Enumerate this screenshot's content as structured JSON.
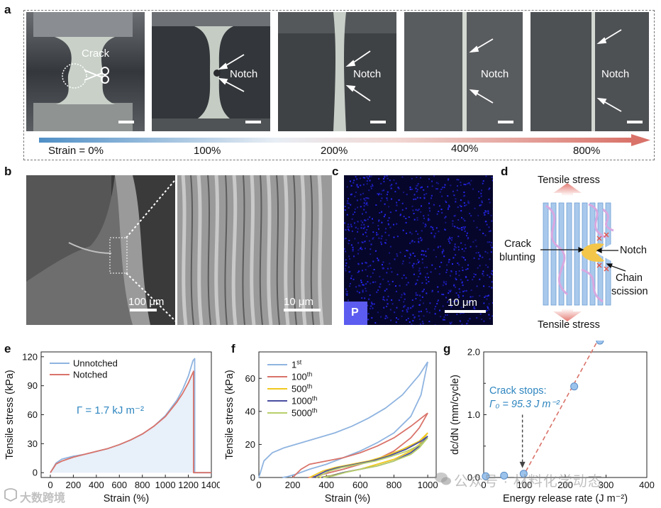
{
  "panel_labels": {
    "a": "a",
    "b": "b",
    "c": "c",
    "d": "d",
    "e": "e",
    "f": "f",
    "g": "g"
  },
  "panel_a": {
    "crack_label": "Crack",
    "notch_label": "Notch",
    "strain_labels": [
      "Strain = 0%",
      "100%",
      "200%",
      "400%",
      "800%"
    ]
  },
  "panel_b": {
    "scale1": "100 μm",
    "scale2": "10 μm"
  },
  "panel_c": {
    "scale": "10 μm",
    "element": "P"
  },
  "panel_d": {
    "tensile_top": "Tensile stress",
    "tensile_bottom": "Tensile stress",
    "crack_blunting": [
      "Crack",
      "blunting"
    ],
    "notch": "Notch",
    "chain_scission": [
      "Chain",
      "scission"
    ]
  },
  "chart_data": [
    {
      "panel": "e",
      "type": "line",
      "xlabel": "Strain (%)",
      "ylabel": "Tensile stress (kPa)",
      "xlim": [
        -80,
        1400
      ],
      "ylim": [
        -5,
        125
      ],
      "xticks": [
        0,
        200,
        400,
        600,
        800,
        1000,
        1200,
        1400
      ],
      "yticks": [
        0,
        30,
        60,
        90,
        120
      ],
      "annotation": "Γ = 1.7 kJ m⁻²",
      "series": [
        {
          "name": "Unnotched",
          "color": "#8fb4e0",
          "x": [
            0,
            50,
            100,
            200,
            300,
            400,
            500,
            600,
            700,
            800,
            900,
            1000,
            1100,
            1150,
            1200,
            1240,
            1255,
            1255,
            1400
          ],
          "y": [
            0,
            10,
            14,
            17,
            19,
            22,
            25,
            29,
            34,
            40,
            48,
            59,
            75,
            86,
            100,
            116,
            118,
            0,
            0
          ]
        },
        {
          "name": "Notched",
          "color": "#d9736a",
          "x": [
            0,
            50,
            100,
            200,
            300,
            400,
            500,
            600,
            700,
            800,
            900,
            1000,
            1100,
            1150,
            1200,
            1230,
            1245,
            1245,
            1400
          ],
          "y": [
            0,
            9,
            12,
            16,
            19,
            22,
            25,
            29,
            34,
            40,
            48,
            58,
            73,
            82,
            93,
            101,
            105,
            0,
            0
          ]
        }
      ]
    },
    {
      "panel": "f",
      "type": "line",
      "xlabel": "Strain (%)",
      "ylabel": "Tensile stress (kPa)",
      "xlim": [
        0,
        1050
      ],
      "ylim": [
        0,
        76
      ],
      "xticks": [
        0,
        200,
        400,
        600,
        800,
        1000
      ],
      "yticks": [
        0,
        20,
        40,
        60
      ],
      "series": [
        {
          "name": "1st",
          "sup": "st",
          "base": "1",
          "color": "#8fb4e0",
          "loading_x": [
            0,
            30,
            80,
            150,
            250,
            350,
            450,
            550,
            650,
            750,
            850,
            950,
            1000
          ],
          "loading_y": [
            0,
            10,
            15,
            18,
            21,
            24,
            27,
            31,
            36,
            42,
            50,
            62,
            70
          ],
          "unloading_x": [
            1000,
            960,
            900,
            800,
            700,
            600,
            500,
            400,
            300,
            220,
            170,
            140
          ],
          "unloading_y": [
            70,
            50,
            37,
            27,
            21,
            16,
            12,
            8,
            5,
            2,
            0.5,
            0
          ]
        },
        {
          "name": "100th",
          "sup": "th",
          "base": "100",
          "color": "#d9736a",
          "loading_x": [
            200,
            250,
            300,
            400,
            500,
            600,
            700,
            800,
            900,
            1000
          ],
          "loading_y": [
            0,
            5,
            8,
            10,
            12,
            15,
            19,
            24,
            31,
            39
          ],
          "unloading_x": [
            1000,
            950,
            900,
            800,
            700,
            600,
            500,
            400,
            330,
            290
          ],
          "unloading_y": [
            39,
            30,
            24,
            16,
            11,
            8,
            5,
            2.5,
            0.5,
            0
          ]
        },
        {
          "name": "500th",
          "sup": "th",
          "base": "500",
          "color": "#f0c81e",
          "loading_x": [
            300,
            380,
            450,
            550,
            650,
            750,
            850,
            950,
            1000
          ],
          "loading_y": [
            0,
            4,
            6,
            8,
            10,
            13,
            17,
            22,
            27
          ],
          "unloading_x": [
            1000,
            950,
            900,
            800,
            700,
            600,
            500,
            420,
            360
          ],
          "unloading_y": [
            27,
            20,
            16,
            11,
            8,
            5,
            3,
            1,
            0
          ]
        },
        {
          "name": "1000th",
          "sup": "th",
          "base": "1000",
          "color": "#4a4ea0",
          "loading_x": [
            320,
            400,
            470,
            570,
            670,
            770,
            870,
            960,
            1000
          ],
          "loading_y": [
            0,
            4,
            6,
            8,
            10,
            13,
            17,
            22,
            25
          ],
          "unloading_x": [
            1000,
            950,
            900,
            800,
            700,
            600,
            500,
            430,
            370
          ],
          "unloading_y": [
            25,
            19,
            15,
            10,
            7,
            5,
            3,
            1,
            0
          ]
        },
        {
          "name": "5000th",
          "sup": "th",
          "base": "5000",
          "color": "#b8cf6a",
          "loading_x": [
            340,
            420,
            490,
            590,
            690,
            790,
            880,
            960,
            1000
          ],
          "loading_y": [
            0,
            4,
            6,
            8,
            10,
            13,
            16,
            20,
            24
          ],
          "unloading_x": [
            1000,
            950,
            900,
            800,
            700,
            600,
            510,
            440,
            380
          ],
          "unloading_y": [
            24,
            18,
            14,
            10,
            7,
            5,
            3,
            1,
            0
          ]
        }
      ]
    },
    {
      "panel": "g",
      "type": "scatter",
      "xlabel": "Energy release rate (J m⁻²)",
      "ylabel": "dc/dN (mm/cycle)",
      "xlim": [
        0,
        400
      ],
      "ylim": [
        0,
        2.0
      ],
      "xticks": [
        0,
        100,
        200,
        300,
        400
      ],
      "yticks": [
        "0.0",
        "1.0",
        "2.0"
      ],
      "yticks_minor": [
        0.5,
        1.5
      ],
      "annotation": [
        "Crack stops:",
        "Γ₀ = 95.3 J m⁻²"
      ],
      "points": [
        {
          "x": 5,
          "y": 0.02
        },
        {
          "x": 50,
          "y": 0.03
        },
        {
          "x": 98,
          "y": 0.06
        },
        {
          "x": 222,
          "y": 1.45
        },
        {
          "x": 285,
          "y": 2.18
        }
      ],
      "fit_line": {
        "x": [
          95,
          305
        ],
        "y": [
          0.0,
          2.48
        ],
        "color": "#d9736a"
      },
      "arrow_x": 95
    }
  ],
  "watermark": {
    "text": "公众号 · 材料化学动态",
    "corner": "大数跨境"
  }
}
